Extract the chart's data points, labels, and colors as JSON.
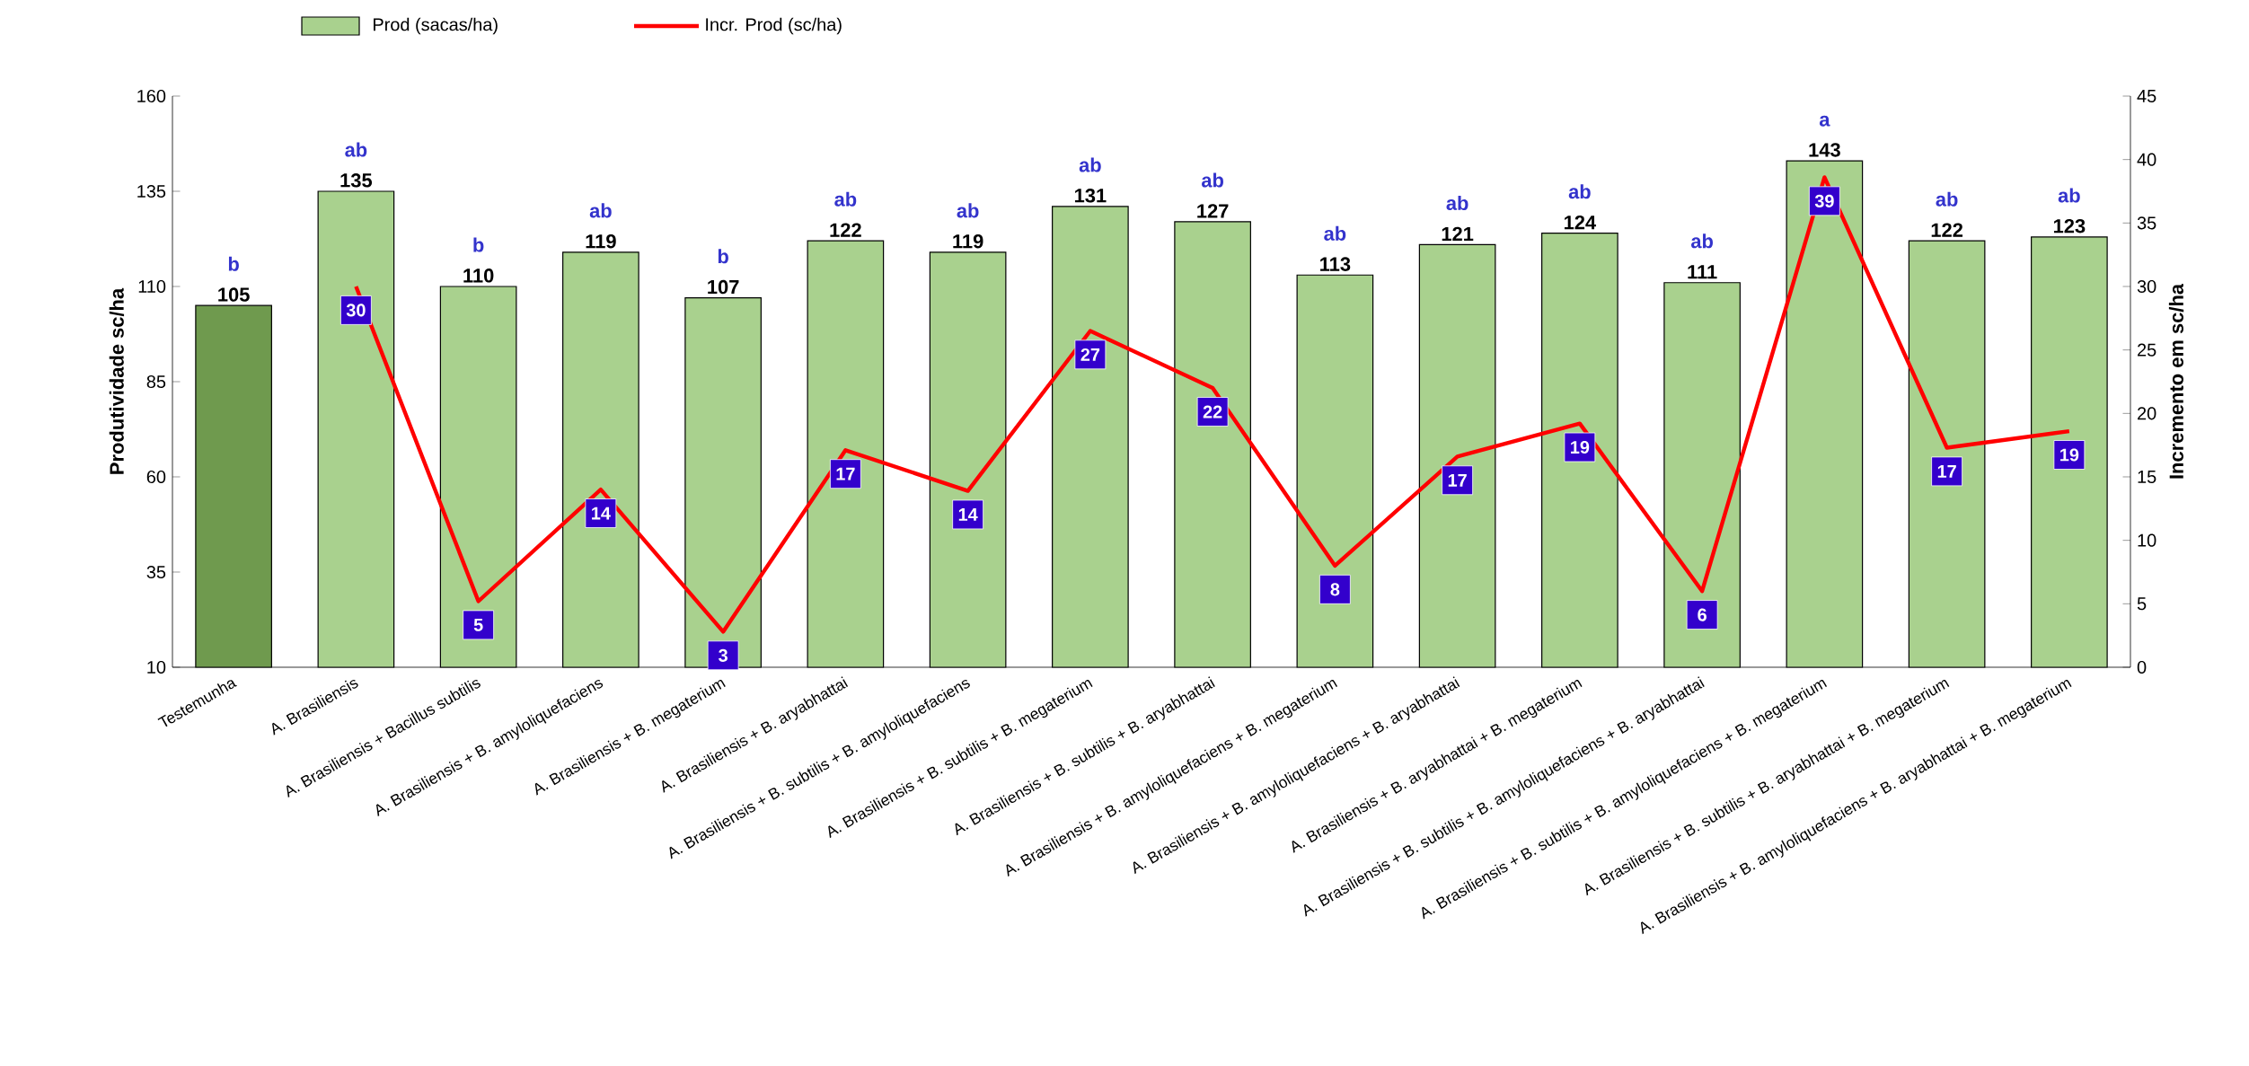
{
  "chart_data": {
    "type": "bar",
    "ylabel": "Produtividade sc/ha",
    "y2label": "Incremento em sc/ha",
    "categories": [
      "Testemunha",
      "A. Brasiliensis",
      "A. Brasiliensis + Bacillus subtilis",
      "A. Brasiliensis + B. amyloliquefaciens",
      "A. Brasiliensis + B. megaterium",
      "A. Brasiliensis + B. aryabhattai",
      "A. Brasiliensis + B. subtilis + B. amyloliquefaciens",
      "A. Brasiliensis + B. subtilis + B. megaterium",
      "A. Brasiliensis + B. subtilis + B. aryabhattai",
      "A. Brasiliensis + B. amyloliquefaciens + B. megaterium",
      "A. Brasiliensis + B. amyloliquefaciens + B. aryabhattai",
      "A. Brasiliensis + B. aryabhattai + B. megaterium",
      "A. Brasiliensis + B. subtilis + B. amyloliquefaciens + B. aryabhattai",
      "A. Brasiliensis + B. subtilis + B. amyloliquefaciens + B. megaterium",
      "A. Brasiliensis + B. subtilis + B. aryabhattai + B. megaterium",
      "A. Brasiliensis + B. amyloliquefaciens + B. aryabhattai + B. megaterium"
    ],
    "series": [
      {
        "name": "Prod (sacas/ha)",
        "colors": [
          "#6f9a4e",
          "#a9d18e",
          "#a9d18e",
          "#a9d18e",
          "#a9d18e",
          "#a9d18e",
          "#a9d18e",
          "#a9d18e",
          "#a9d18e",
          "#a9d18e",
          "#a9d18e",
          "#a9d18e",
          "#a9d18e",
          "#a9d18e",
          "#a9d18e",
          "#a9d18e"
        ],
        "values": [
          105,
          135,
          110,
          119,
          107,
          122,
          119,
          131,
          127,
          113,
          121,
          124,
          111,
          143,
          122,
          123
        ]
      },
      {
        "name": "Incr. Prod (sc/ha)",
        "type": "line",
        "axis": "y2",
        "color": "#ff0000",
        "values": [
          null,
          30,
          5.2,
          14,
          2.8,
          17.1,
          13.9,
          26.5,
          22,
          8,
          16.6,
          19.2,
          6,
          38.6,
          17.3,
          18.6
        ],
        "value_labels": [
          null,
          "30",
          "5",
          "14",
          "3",
          "17",
          "14",
          "27",
          "22",
          "8",
          "17",
          "19",
          "6",
          "39",
          "17",
          "19"
        ]
      }
    ],
    "data_labels": true,
    "ylim": [
      10,
      160
    ],
    "yticks": [
      10,
      35,
      60,
      85,
      110,
      135,
      160
    ],
    "y2lim": [
      0,
      45
    ],
    "y2ticks": [
      0,
      5,
      10,
      15,
      20,
      25,
      30,
      35,
      40,
      45
    ],
    "legend": "top left",
    "grid": false,
    "marker": "none",
    "annotations": [
      {
        "text": "b",
        "x": "Testemunha",
        "y": 105
      },
      {
        "text": "ab",
        "x": "A. Brasiliensis",
        "y": 135
      },
      {
        "text": "b",
        "x": "A. Brasiliensis + Bacillus subtilis",
        "y": 110
      },
      {
        "text": "ab",
        "x": "A. Brasiliensis + B. amyloliquefaciens",
        "y": 119
      },
      {
        "text": "b",
        "x": "A. Brasiliensis + B. megaterium",
        "y": 107
      },
      {
        "text": "ab",
        "x": "A. Brasiliensis + B. aryabhattai",
        "y": 122
      },
      {
        "text": "ab",
        "x": "A. Brasiliensis + B. subtilis + B. amyloliquefaciens",
        "y": 119
      },
      {
        "text": "ab",
        "x": "A. Brasiliensis + B. subtilis + B. megaterium",
        "y": 131
      },
      {
        "text": "ab",
        "x": "A. Brasiliensis + B. subtilis + B. aryabhattai",
        "y": 127
      },
      {
        "text": "ab",
        "x": "A. Brasiliensis + B. amyloliquefaciens + B. megaterium",
        "y": 113
      },
      {
        "text": "ab",
        "x": "A. Brasiliensis + B. amyloliquefaciens + B. aryabhattai",
        "y": 121
      },
      {
        "text": "ab",
        "x": "A. Brasiliensis + B. aryabhattai + B. megaterium",
        "y": 124
      },
      {
        "text": "ab",
        "x": "A. Brasiliensis + B. subtilis + B. amyloliquefaciens + B. aryabhattai",
        "y": 111
      },
      {
        "text": "a",
        "x": "A. Brasiliensis + B. subtilis + B. amyloliquefaciens + B. megaterium",
        "y": 143
      },
      {
        "text": "ab",
        "x": "A. Brasiliensis + B. subtilis + B. aryabhattai + B. megaterium",
        "y": 122
      },
      {
        "text": "ab",
        "x": "A. Brasiliensis + B. amyloliquefaciens + B. aryabhattai + B. megaterium",
        "y": 123
      }
    ]
  }
}
